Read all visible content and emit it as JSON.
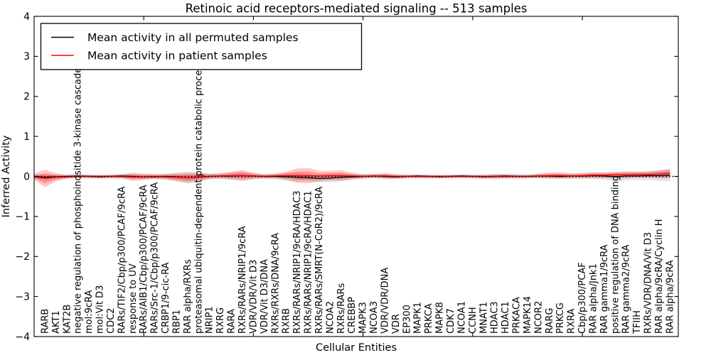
{
  "figure": {
    "title": "Retinoic acid receptors-mediated signaling -- 513 samples",
    "xlabel": "Cellular Entities",
    "ylabel": "Inferred Activity"
  },
  "legend": {
    "items": [
      {
        "label": "Mean activity in all permuted samples",
        "color": "#000000"
      },
      {
        "label": "Mean activity in patient samples",
        "color": "#ff0000"
      }
    ]
  },
  "axes": {
    "ytick_labels": [
      "4",
      "3",
      "2",
      "1",
      "0",
      "−1",
      "−2",
      "−3",
      "−4"
    ],
    "ytick_values": [
      4,
      3,
      2,
      1,
      0,
      -1,
      -2,
      -3,
      -4
    ],
    "xtick_values": [
      10,
      20,
      30,
      40,
      50
    ]
  },
  "chart_data": {
    "type": "line",
    "title": "Retinoic acid receptors-mediated signaling -- 513 samples",
    "xlabel": "Cellular Entities",
    "ylabel": "Inferred Activity",
    "ylim": [
      -4,
      4
    ],
    "xlim": [
      0,
      58.75
    ],
    "grid": false,
    "legend_position": "upper left",
    "zero_reference_line": 0,
    "categories_start_x": 1,
    "categories": [
      "RARB",
      "AKT1",
      "KAT2B",
      "negative regulation of phosphoinositide 3-kinase cascade",
      "mol:9cRA",
      "mol:Vit D3",
      "CDC2",
      "RARs/TIF2/Cbp/p300/PCAF/9cRA",
      "response to UV",
      "RARs/AIB1/Cbp/p300/PCAF/9cRA",
      "RARs/Src-1/Cbp/p300/PCAF/9cRA",
      "CRBP1/9-cic-RA",
      "RBP1",
      "RAR alpha/RXRs",
      "proteasomal ubiquitin-dependent protein catabolic process",
      "NRIP1",
      "RXRG",
      "RARA",
      "RXRs/RARs/NRIP1/9cRA",
      "VDR/VDR/Vit D3",
      "VDR/Vit D3/DNA",
      "RXRs/RXRs/DNA/9cRA",
      "RXRB",
      "RXRs/RARs/NRIP1/9cRA/HDAC3",
      "RXRs/RARs/NRIP1/9cRA/HDAC1",
      "RXRs/RARs/SMRT(N-CoR2)/9cRA",
      "NCOA2",
      "RXRs/RARs",
      "CREBBP",
      "MAPK3",
      "NCOA3",
      "VDR/VDR/DNA",
      "VDR",
      "EP300",
      "MAPK1",
      "PRKCA",
      "MAPK8",
      "CDK7",
      "NCOA1",
      "CCNH",
      "MNAT1",
      "HDAC3",
      "HDAC1",
      "PRKACA",
      "MAPK14",
      "NCOR2",
      "RARG",
      "PRKCG",
      "RXRA",
      "Cbp/p300/PCAF",
      "RAR alpha/Jnk1",
      "RAR gamma1/9cRA",
      "positive regulation of DNA binding",
      "RAR gamma2/9cRA",
      "TFIIH",
      "RXRs/VDR/DNA/Vit D3",
      "RAR alpha/9cRA/Cyclin H",
      "RAR alpha/9cRA"
    ],
    "x": [
      0,
      1,
      2,
      3,
      4,
      5,
      6,
      7,
      8,
      9,
      10,
      11,
      12,
      13,
      14,
      15,
      16,
      17,
      18,
      19,
      20,
      21,
      22,
      23,
      24,
      25,
      26,
      27,
      28,
      29,
      30,
      31,
      32,
      33,
      34,
      35,
      36,
      37,
      38,
      39,
      40,
      41,
      42,
      43,
      44,
      45,
      46,
      47,
      48,
      49,
      50,
      51,
      52,
      53,
      54,
      55,
      56,
      57,
      58
    ],
    "series": [
      {
        "name": "Mean activity in all permuted samples",
        "color": "#000000",
        "band_color": "#000000",
        "band_opacity_outer": 0.1,
        "band_opacity_inner": 0.08,
        "mean": [
          0,
          -0.02,
          -0.01,
          0,
          0.01,
          0,
          -0.01,
          0,
          0.01,
          0,
          -0.01,
          -0.01,
          0,
          -0.01,
          -0.03,
          -0.02,
          0,
          0.01,
          0.01,
          0.02,
          0.01,
          0,
          0,
          -0.01,
          -0.02,
          -0.03,
          -0.05,
          -0.04,
          -0.02,
          -0.01,
          0,
          0.01,
          0,
          -0.01,
          0,
          0.01,
          0,
          -0.01,
          0,
          0.01,
          0,
          -0.01,
          0,
          0.01,
          0,
          0,
          0.01,
          0.01,
          0,
          0.01,
          0.01,
          0.02,
          0.01,
          -0.01,
          0.01,
          0.01,
          0.02,
          0.02,
          0.03
        ],
        "std": [
          0.05,
          0.08,
          0.06,
          0.05,
          0.05,
          0.05,
          0.05,
          0.05,
          0.06,
          0.07,
          0.06,
          0.06,
          0.07,
          0.1,
          0.15,
          0.12,
          0.08,
          0.08,
          0.09,
          0.1,
          0.07,
          0.06,
          0.07,
          0.1,
          0.11,
          0.1,
          0.1,
          0.11,
          0.1,
          0.07,
          0.06,
          0.05,
          0.06,
          0.05,
          0.05,
          0.05,
          0.05,
          0.04,
          0.05,
          0.04,
          0.05,
          0.06,
          0.07,
          0.06,
          0.06,
          0.05,
          0.06,
          0.07,
          0.06,
          0.07,
          0.08,
          0.08,
          0.09,
          0.12,
          0.11,
          0.1,
          0.11,
          0.13,
          0.15
        ]
      },
      {
        "name": "Mean activity in patient samples",
        "color": "#ff0000",
        "band_color": "#ff0000",
        "band_opacity_outer": 0.22,
        "band_opacity_inner": 0.25,
        "mean": [
          -0.01,
          -0.05,
          -0.02,
          -0.01,
          0,
          0,
          0,
          0,
          0,
          -0.01,
          -0.01,
          0,
          -0.01,
          -0.02,
          -0.03,
          -0.01,
          0,
          0.01,
          0.02,
          0.02,
          0.01,
          0,
          0.01,
          0.02,
          0.02,
          0.02,
          0.01,
          0.02,
          0.02,
          0.01,
          0,
          0.01,
          0.01,
          0,
          0,
          0,
          0,
          0,
          0,
          0,
          0,
          0,
          0,
          0,
          0,
          0,
          0.01,
          0.02,
          0.02,
          0.01,
          0.02,
          0.03,
          0.03,
          0.04,
          0.04,
          0.05,
          0.05,
          0.06,
          0.08
        ],
        "std": [
          0.08,
          0.22,
          0.1,
          0.05,
          0.04,
          0.04,
          0.04,
          0.04,
          0.05,
          0.1,
          0.08,
          0.06,
          0.07,
          0.1,
          0.12,
          0.1,
          0.06,
          0.06,
          0.1,
          0.14,
          0.08,
          0.05,
          0.06,
          0.1,
          0.18,
          0.19,
          0.13,
          0.12,
          0.13,
          0.08,
          0.05,
          0.05,
          0.07,
          0.06,
          0.04,
          0.04,
          0.04,
          0.04,
          0.04,
          0.04,
          0.04,
          0.04,
          0.05,
          0.05,
          0.04,
          0.04,
          0.05,
          0.07,
          0.08,
          0.06,
          0.06,
          0.07,
          0.07,
          0.07,
          0.08,
          0.07,
          0.08,
          0.1,
          0.11
        ]
      }
    ]
  }
}
